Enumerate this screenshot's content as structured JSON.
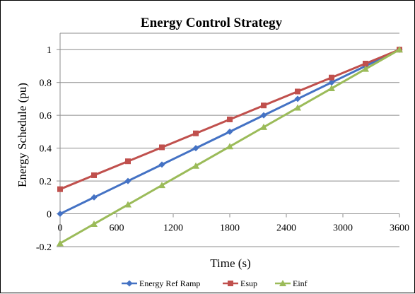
{
  "chart_data": {
    "type": "line",
    "title": "Energy Control Strategy",
    "xlabel": "Time (s)",
    "ylabel": "Energy  Schedule (pu)",
    "xlim": [
      0,
      3600
    ],
    "ylim": [
      -0.2,
      1.1
    ],
    "x_ticks": [
      "0",
      "600",
      "1200",
      "1800",
      "2400",
      "3000",
      "3600"
    ],
    "y_ticks": [
      "-0.2",
      "0",
      "0.2",
      "0.4",
      "0.6",
      "0.8",
      "1"
    ],
    "grid": "horizontal",
    "legend_position": "bottom",
    "x": [
      0,
      360,
      720,
      1080,
      1440,
      1800,
      2160,
      2520,
      2880,
      3240,
      3600
    ],
    "series": [
      {
        "name": "Energy Ref Ramp",
        "color": "#4472c4",
        "marker": "diamond",
        "values": [
          0,
          0.1,
          0.2,
          0.3,
          0.4,
          0.5,
          0.6,
          0.7,
          0.8,
          0.9,
          1.0
        ]
      },
      {
        "name": "Esup",
        "color": "#c0504d",
        "marker": "square",
        "values": [
          0.15,
          0.235,
          0.32,
          0.405,
          0.49,
          0.575,
          0.66,
          0.745,
          0.83,
          0.915,
          1.0
        ]
      },
      {
        "name": "Einf",
        "color": "#9bbb59",
        "marker": "triangle",
        "values": [
          -0.18,
          -0.062,
          0.056,
          0.174,
          0.292,
          0.41,
          0.528,
          0.646,
          0.764,
          0.882,
          1.0
        ]
      }
    ]
  }
}
